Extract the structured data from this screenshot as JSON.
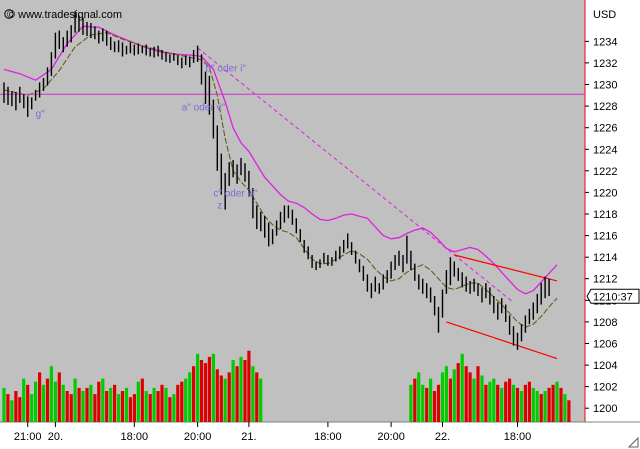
{
  "watermark": "© www.tradesignal.com",
  "currency": "USD",
  "price_box": "1210:37",
  "colors": {
    "plot_bg": "#c0c0c0",
    "axis_bg": "#ffffff",
    "upper_band": "#e020e0",
    "moving_avg": "#6b5a1c",
    "price_bars": "#000000",
    "volume_up": "#00cc00",
    "volume_down": "#dd0000",
    "channel": "#ff0000",
    "horizontal_line": "#cc33cc",
    "annotation": "#7b6cd8"
  },
  "annotations": [
    {
      "text": "b\" oder i\"",
      "price": 1231.2,
      "index": 51
    },
    {
      "text": "a\" oder v\"",
      "price": 1227.6,
      "index": 45
    },
    {
      "text": "c\" oder iii\"",
      "price": 1219.6,
      "index": 53
    },
    {
      "text": "z",
      "price": 1218.5,
      "index": 54
    },
    {
      "text": "g\"",
      "price": 1227.0,
      "index": 8
    }
  ],
  "chart_data": {
    "type": "line",
    "title": "",
    "xlabel": "",
    "ylabel": "USD",
    "ylim": [
      1199,
      1237
    ],
    "y_ticks": [
      1200,
      1202,
      1204,
      1206,
      1208,
      1210,
      1212,
      1214,
      1216,
      1218,
      1220,
      1222,
      1224,
      1226,
      1228,
      1230,
      1232,
      1234
    ],
    "x_ticks": [
      {
        "label": "21:00",
        "index": 6
      },
      {
        "label": "20.",
        "index": 13
      },
      {
        "label": "18:00",
        "index": 33
      },
      {
        "label": "20:00",
        "index": 49
      },
      {
        "label": "21.",
        "index": 62
      },
      {
        "label": "18:00",
        "index": 82
      },
      {
        "label": "20:00",
        "index": 98
      },
      {
        "label": "22.",
        "index": 111
      },
      {
        "label": "18:00",
        "index": 130
      }
    ],
    "last_price": 1210.37,
    "horizontal_line": 1229.1,
    "price_bars": [
      {
        "h": 1230.2,
        "l": 1228.3
      },
      {
        "h": 1229.8,
        "l": 1228.1
      },
      {
        "h": 1229.4,
        "l": 1228.0
      },
      {
        "h": 1229.3,
        "l": 1227.6
      },
      {
        "h": 1229.8,
        "l": 1228.3
      },
      {
        "h": 1229.1,
        "l": 1227.8
      },
      {
        "h": 1228.9,
        "l": 1227.0
      },
      {
        "h": 1228.8,
        "l": 1227.7
      },
      {
        "h": 1229.5,
        "l": 1228.5
      },
      {
        "h": 1230.2,
        "l": 1228.8
      },
      {
        "h": 1230.6,
        "l": 1229.4
      },
      {
        "h": 1231.6,
        "l": 1229.9
      },
      {
        "h": 1233.0,
        "l": 1230.8
      },
      {
        "h": 1234.8,
        "l": 1232.4
      },
      {
        "h": 1235.0,
        "l": 1233.3
      },
      {
        "h": 1234.4,
        "l": 1233.0
      },
      {
        "h": 1235.0,
        "l": 1233.5
      },
      {
        "h": 1235.5,
        "l": 1233.9
      },
      {
        "h": 1236.8,
        "l": 1234.8
      },
      {
        "h": 1236.4,
        "l": 1234.9
      },
      {
        "h": 1236.2,
        "l": 1234.6
      },
      {
        "h": 1235.8,
        "l": 1234.5
      },
      {
        "h": 1235.7,
        "l": 1234.3
      },
      {
        "h": 1235.4,
        "l": 1234.2
      },
      {
        "h": 1235.0,
        "l": 1233.8
      },
      {
        "h": 1235.2,
        "l": 1234.0
      },
      {
        "h": 1235.0,
        "l": 1233.6
      },
      {
        "h": 1234.4,
        "l": 1233.2
      },
      {
        "h": 1234.0,
        "l": 1233.0
      },
      {
        "h": 1234.1,
        "l": 1233.0
      },
      {
        "h": 1233.9,
        "l": 1232.6
      },
      {
        "h": 1233.6,
        "l": 1232.8
      },
      {
        "h": 1233.9,
        "l": 1232.9
      },
      {
        "h": 1233.7,
        "l": 1232.7
      },
      {
        "h": 1233.8,
        "l": 1232.8
      },
      {
        "h": 1233.6,
        "l": 1232.9
      },
      {
        "h": 1233.7,
        "l": 1232.7
      },
      {
        "h": 1233.4,
        "l": 1232.6
      },
      {
        "h": 1233.5,
        "l": 1232.5
      },
      {
        "h": 1233.6,
        "l": 1232.6
      },
      {
        "h": 1233.2,
        "l": 1232.3
      },
      {
        "h": 1233.0,
        "l": 1232.1
      },
      {
        "h": 1232.8,
        "l": 1232.0
      },
      {
        "h": 1232.9,
        "l": 1232.2
      },
      {
        "h": 1232.7,
        "l": 1231.8
      },
      {
        "h": 1232.5,
        "l": 1231.5
      },
      {
        "h": 1232.7,
        "l": 1231.8
      },
      {
        "h": 1232.6,
        "l": 1231.6
      },
      {
        "h": 1233.2,
        "l": 1232.0
      },
      {
        "h": 1233.6,
        "l": 1232.1
      },
      {
        "h": 1232.8,
        "l": 1230.0
      },
      {
        "h": 1231.2,
        "l": 1228.2
      },
      {
        "h": 1230.8,
        "l": 1227.2
      },
      {
        "h": 1228.6,
        "l": 1225.0
      },
      {
        "h": 1226.2,
        "l": 1222.0
      },
      {
        "h": 1223.6,
        "l": 1219.8
      },
      {
        "h": 1221.8,
        "l": 1218.4
      },
      {
        "h": 1222.8,
        "l": 1220.6
      },
      {
        "h": 1223.0,
        "l": 1221.4
      },
      {
        "h": 1222.6,
        "l": 1220.8
      },
      {
        "h": 1223.2,
        "l": 1221.6
      },
      {
        "h": 1222.7,
        "l": 1221.0
      },
      {
        "h": 1222.0,
        "l": 1219.6
      },
      {
        "h": 1220.4,
        "l": 1217.6
      },
      {
        "h": 1218.8,
        "l": 1216.6
      },
      {
        "h": 1218.2,
        "l": 1216.4
      },
      {
        "h": 1217.8,
        "l": 1215.8
      },
      {
        "h": 1217.2,
        "l": 1215.0
      },
      {
        "h": 1216.6,
        "l": 1215.2
      },
      {
        "h": 1217.4,
        "l": 1216.0
      },
      {
        "h": 1218.2,
        "l": 1216.6
      },
      {
        "h": 1218.8,
        "l": 1217.2
      },
      {
        "h": 1218.8,
        "l": 1217.6
      },
      {
        "h": 1218.4,
        "l": 1217.0
      },
      {
        "h": 1217.6,
        "l": 1216.2
      },
      {
        "h": 1216.6,
        "l": 1215.4
      },
      {
        "h": 1215.6,
        "l": 1214.4
      },
      {
        "h": 1215.0,
        "l": 1213.8
      },
      {
        "h": 1214.2,
        "l": 1213.0
      },
      {
        "h": 1213.6,
        "l": 1212.8
      },
      {
        "h": 1213.8,
        "l": 1213.0
      },
      {
        "h": 1214.4,
        "l": 1213.4
      },
      {
        "h": 1214.2,
        "l": 1213.2
      },
      {
        "h": 1214.0,
        "l": 1213.2
      },
      {
        "h": 1214.6,
        "l": 1213.6
      },
      {
        "h": 1215.0,
        "l": 1213.8
      },
      {
        "h": 1215.6,
        "l": 1214.4
      },
      {
        "h": 1216.2,
        "l": 1214.8
      },
      {
        "h": 1215.4,
        "l": 1214.2
      },
      {
        "h": 1214.6,
        "l": 1213.4
      },
      {
        "h": 1213.8,
        "l": 1212.6
      },
      {
        "h": 1213.2,
        "l": 1211.8
      },
      {
        "h": 1212.4,
        "l": 1210.8
      },
      {
        "h": 1211.6,
        "l": 1210.2
      },
      {
        "h": 1212.2,
        "l": 1210.8
      },
      {
        "h": 1211.6,
        "l": 1210.6
      },
      {
        "h": 1212.4,
        "l": 1211.0
      },
      {
        "h": 1212.8,
        "l": 1211.6
      },
      {
        "h": 1213.6,
        "l": 1212.0
      },
      {
        "h": 1214.2,
        "l": 1212.8
      },
      {
        "h": 1214.6,
        "l": 1213.2
      },
      {
        "h": 1214.2,
        "l": 1212.6
      },
      {
        "h": 1216.0,
        "l": 1213.4
      },
      {
        "h": 1214.6,
        "l": 1212.8
      },
      {
        "h": 1213.4,
        "l": 1211.8
      },
      {
        "h": 1212.4,
        "l": 1211.0
      },
      {
        "h": 1212.0,
        "l": 1210.6
      },
      {
        "h": 1211.6,
        "l": 1210.2
      },
      {
        "h": 1211.2,
        "l": 1209.8
      },
      {
        "h": 1210.4,
        "l": 1208.6
      },
      {
        "h": 1209.4,
        "l": 1207.0
      },
      {
        "h": 1211.0,
        "l": 1208.4
      },
      {
        "h": 1212.8,
        "l": 1210.6
      },
      {
        "h": 1214.0,
        "l": 1211.4
      },
      {
        "h": 1213.6,
        "l": 1212.2
      },
      {
        "h": 1213.0,
        "l": 1211.8
      },
      {
        "h": 1212.6,
        "l": 1211.2
      },
      {
        "h": 1212.2,
        "l": 1210.8
      },
      {
        "h": 1211.8,
        "l": 1210.6
      },
      {
        "h": 1212.0,
        "l": 1210.8
      },
      {
        "h": 1211.6,
        "l": 1210.4
      },
      {
        "h": 1211.2,
        "l": 1209.8
      },
      {
        "h": 1211.6,
        "l": 1210.2
      },
      {
        "h": 1211.2,
        "l": 1209.6
      },
      {
        "h": 1210.4,
        "l": 1208.8
      },
      {
        "h": 1209.8,
        "l": 1208.2
      },
      {
        "h": 1210.2,
        "l": 1208.8
      },
      {
        "h": 1209.6,
        "l": 1208.0
      },
      {
        "h": 1208.6,
        "l": 1206.8
      },
      {
        "h": 1207.6,
        "l": 1205.8
      },
      {
        "h": 1207.0,
        "l": 1205.4
      },
      {
        "h": 1207.8,
        "l": 1206.2
      },
      {
        "h": 1208.6,
        "l": 1207.0
      },
      {
        "h": 1209.2,
        "l": 1207.8
      },
      {
        "h": 1209.8,
        "l": 1208.2
      },
      {
        "h": 1210.6,
        "l": 1208.8
      },
      {
        "h": 1211.6,
        "l": 1209.6
      },
      {
        "h": 1212.2,
        "l": 1210.2
      },
      {
        "h": 1212.0,
        "l": 1210.4
      }
    ],
    "moving_average": [
      [
        0,
        1229.5
      ],
      [
        6,
        1229.0
      ],
      [
        10,
        1229.6
      ],
      [
        14,
        1231.3
      ],
      [
        18,
        1233.5
      ],
      [
        22,
        1234.6
      ],
      [
        26,
        1234.8
      ],
      [
        30,
        1234.2
      ],
      [
        34,
        1233.7
      ],
      [
        38,
        1233.3
      ],
      [
        42,
        1232.9
      ],
      [
        46,
        1232.6
      ],
      [
        50,
        1232.3
      ],
      [
        52,
        1231.6
      ],
      [
        54,
        1229.0
      ],
      [
        56,
        1225.0
      ],
      [
        58,
        1222.0
      ],
      [
        60,
        1221.0
      ],
      [
        62,
        1220.2
      ],
      [
        64,
        1219.0
      ],
      [
        66,
        1217.8
      ],
      [
        68,
        1217.0
      ],
      [
        70,
        1216.5
      ],
      [
        72,
        1216.3
      ],
      [
        74,
        1215.8
      ],
      [
        76,
        1214.8
      ],
      [
        78,
        1213.8
      ],
      [
        80,
        1213.4
      ],
      [
        82,
        1213.4
      ],
      [
        84,
        1213.8
      ],
      [
        86,
        1214.2
      ],
      [
        88,
        1214.6
      ],
      [
        90,
        1214.3
      ],
      [
        92,
        1213.8
      ],
      [
        94,
        1212.9
      ],
      [
        96,
        1212.2
      ],
      [
        98,
        1211.8
      ],
      [
        100,
        1212.0
      ],
      [
        102,
        1212.6
      ],
      [
        104,
        1213.0
      ],
      [
        106,
        1213.3
      ],
      [
        108,
        1212.8
      ],
      [
        110,
        1212.0
      ],
      [
        112,
        1211.2
      ],
      [
        114,
        1211.0
      ],
      [
        116,
        1211.3
      ],
      [
        118,
        1211.6
      ],
      [
        120,
        1211.6
      ],
      [
        122,
        1211.0
      ],
      [
        124,
        1210.3
      ],
      [
        126,
        1209.6
      ],
      [
        128,
        1208.8
      ],
      [
        130,
        1208.0
      ],
      [
        132,
        1207.5
      ],
      [
        134,
        1207.8
      ],
      [
        136,
        1208.5
      ],
      [
        138,
        1209.4
      ],
      [
        140,
        1210.2
      ]
    ],
    "envelope_upper": [
      [
        0,
        1231.4
      ],
      [
        4,
        1231.0
      ],
      [
        8,
        1230.4
      ],
      [
        12,
        1231.4
      ],
      [
        16,
        1233.8
      ],
      [
        20,
        1235.4
      ],
      [
        24,
        1235.3
      ],
      [
        28,
        1234.6
      ],
      [
        32,
        1234.0
      ],
      [
        36,
        1233.4
      ],
      [
        40,
        1233.0
      ],
      [
        44,
        1232.8
      ],
      [
        48,
        1232.7
      ],
      [
        50,
        1232.6
      ],
      [
        53,
        1231.4
      ],
      [
        56,
        1228.4
      ],
      [
        58,
        1226.0
      ],
      [
        60,
        1224.6
      ],
      [
        62,
        1223.8
      ],
      [
        64,
        1222.6
      ],
      [
        66,
        1221.4
      ],
      [
        68,
        1220.6
      ],
      [
        70,
        1219.8
      ],
      [
        72,
        1219.2
      ],
      [
        74,
        1219.0
      ],
      [
        76,
        1218.6
      ],
      [
        78,
        1218.0
      ],
      [
        80,
        1217.5
      ],
      [
        82,
        1217.4
      ],
      [
        84,
        1217.6
      ],
      [
        86,
        1217.9
      ],
      [
        88,
        1218.0
      ],
      [
        90,
        1217.8
      ],
      [
        92,
        1217.6
      ],
      [
        94,
        1216.8
      ],
      [
        96,
        1216.0
      ],
      [
        98,
        1215.7
      ],
      [
        100,
        1215.8
      ],
      [
        102,
        1216.2
      ],
      [
        104,
        1216.5
      ],
      [
        106,
        1216.7
      ],
      [
        108,
        1216.3
      ],
      [
        110,
        1215.6
      ],
      [
        112,
        1214.8
      ],
      [
        114,
        1214.5
      ],
      [
        116,
        1214.7
      ],
      [
        118,
        1214.9
      ],
      [
        120,
        1214.7
      ],
      [
        122,
        1214.1
      ],
      [
        124,
        1213.4
      ],
      [
        126,
        1212.6
      ],
      [
        128,
        1211.8
      ],
      [
        130,
        1211.0
      ],
      [
        132,
        1210.6
      ],
      [
        134,
        1210.9
      ],
      [
        136,
        1211.7
      ],
      [
        138,
        1212.5
      ],
      [
        140,
        1213.3
      ]
    ],
    "channel_upper": [
      [
        114,
        1214.2
      ],
      [
        140,
        1211.8
      ]
    ],
    "channel_lower": [
      [
        112,
        1208.0
      ],
      [
        140,
        1204.6
      ]
    ],
    "dashed_trend": [
      [
        49,
        1233.4
      ],
      [
        129,
        1209.8
      ]
    ],
    "volume": [
      11,
      9,
      7,
      10,
      8,
      14,
      12,
      9,
      13,
      16,
      12,
      14,
      18,
      13,
      16,
      12,
      10,
      9,
      14,
      11,
      10,
      11,
      12,
      9,
      13,
      14,
      10,
      11,
      12,
      9,
      10,
      11,
      8,
      9,
      13,
      14,
      10,
      9,
      11,
      10,
      12,
      11,
      8,
      9,
      12,
      13,
      14,
      16,
      18,
      22,
      20,
      19,
      21,
      22,
      17,
      15,
      14,
      16,
      20,
      18,
      21,
      20,
      23,
      18,
      16,
      14,
      0,
      0,
      0,
      0,
      0,
      0,
      0,
      0,
      0,
      0,
      0,
      0,
      0,
      0,
      0,
      0,
      0,
      0,
      0,
      0,
      0,
      0,
      0,
      0,
      0,
      0,
      0,
      0,
      0,
      0,
      0,
      0,
      0,
      0,
      0,
      0,
      0,
      12,
      14,
      16,
      12,
      11,
      14,
      10,
      12,
      16,
      18,
      14,
      17,
      19,
      22,
      18,
      16,
      14,
      18,
      15,
      12,
      13,
      14,
      12,
      11,
      13,
      14,
      12,
      11,
      10,
      12,
      13,
      11,
      10,
      9,
      10,
      11,
      12,
      13,
      11,
      9,
      7
    ],
    "volume_direction": [
      1,
      0,
      1,
      0,
      0,
      1,
      0,
      1,
      1,
      0,
      1,
      0,
      1,
      1,
      0,
      1,
      0,
      0,
      1,
      0,
      1,
      0,
      1,
      0,
      0,
      1,
      0,
      1,
      0,
      1,
      0,
      1,
      0,
      0,
      1,
      0,
      1,
      0,
      1,
      0,
      0,
      1,
      0,
      1,
      0,
      0,
      1,
      1,
      0,
      1,
      0,
      0,
      0,
      1,
      0,
      0,
      1,
      0,
      1,
      0,
      1,
      0,
      0,
      1,
      0,
      1,
      0,
      0,
      0,
      0,
      0,
      0,
      0,
      0,
      0,
      0,
      0,
      0,
      0,
      0,
      0,
      0,
      0,
      0,
      0,
      0,
      0,
      0,
      0,
      0,
      0,
      0,
      0,
      0,
      0,
      0,
      0,
      0,
      0,
      0,
      0,
      0,
      0,
      1,
      0,
      1,
      1,
      0,
      1,
      0,
      0,
      1,
      1,
      0,
      1,
      0,
      1,
      0,
      0,
      1,
      0,
      1,
      0,
      1,
      1,
      0,
      1,
      0,
      0,
      1,
      0,
      1,
      0,
      0,
      1,
      1,
      0,
      1,
      0,
      0,
      1,
      0,
      1,
      0
    ]
  }
}
